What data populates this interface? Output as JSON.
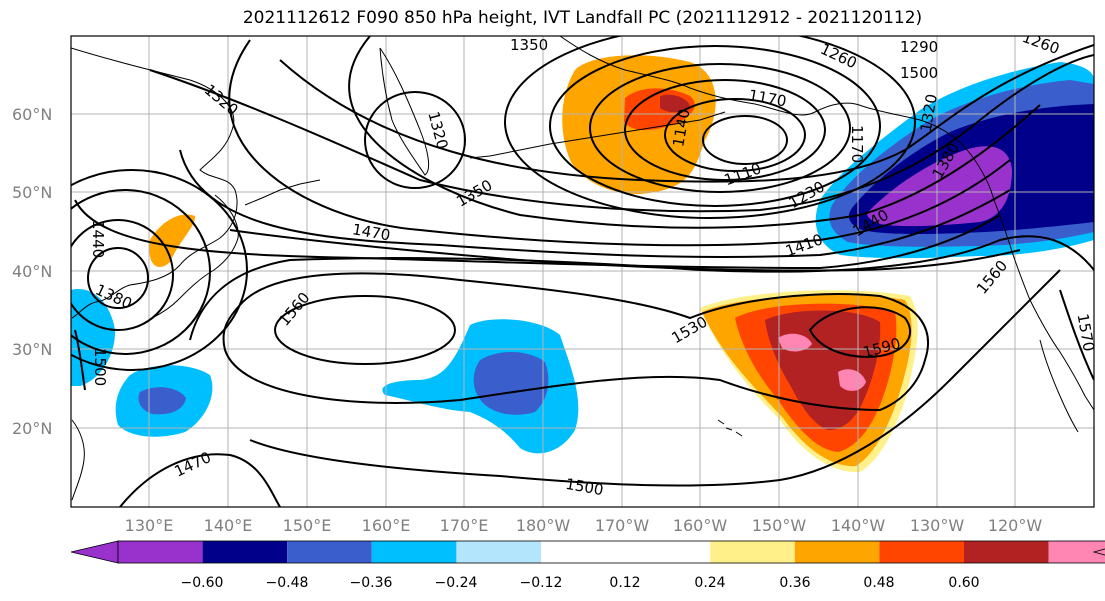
{
  "title": "2021112612 F090 850 hPa height, IVT Landfall PC (2021112912 - 2021120112)",
  "latitude_labels": [
    "60°N",
    "50°N",
    "40°N",
    "30°N",
    "20°N"
  ],
  "longitude_labels": [
    "130°E",
    "140°E",
    "150°E",
    "160°E",
    "170°E",
    "180°W",
    "170°W",
    "160°W",
    "150°W",
    "140°W",
    "130°W",
    "120°W"
  ],
  "contour_labels": [
    "1320",
    "1350",
    "1260",
    "1290",
    "1260",
    "1170",
    "1140",
    "1110",
    "1230",
    "1350",
    "1470",
    "1410",
    "1440",
    "1560",
    "1530",
    "1590",
    "1560",
    "1500",
    "1470",
    "1440",
    "1380",
    "1500",
    "1320",
    "1170",
    "1500",
    "1320",
    "1380",
    "1570"
  ],
  "colorbar": {
    "colors": [
      "#9932cc",
      "#00008b",
      "#3a5fcd",
      "#00bfff",
      "#b3e5fc",
      "#ffffff",
      "#ffffff",
      "#fff08a",
      "#ffa500",
      "#ff4500",
      "#b22222",
      "#ff85b3"
    ],
    "tick_labels": [
      "−0.60",
      "−0.48",
      "−0.36",
      "−0.24",
      "−0.12",
      "0.12",
      "0.24",
      "0.36",
      "0.48",
      "0.60"
    ]
  }
}
